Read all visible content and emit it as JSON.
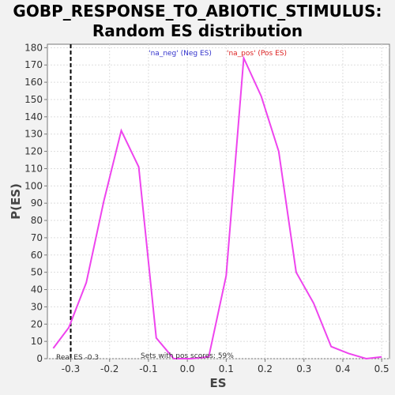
{
  "chart_data": {
    "type": "line",
    "title_line1": "GOBP_RESPONSE_TO_ABIOTIC_STIMULUS:",
    "title_line2": "Random ES distribution",
    "xlabel": "ES",
    "ylabel": "P(ES)",
    "xlim": [
      -0.36,
      0.52
    ],
    "ylim": [
      0,
      182
    ],
    "xticks": [
      -0.3,
      -0.2,
      -0.1,
      0.0,
      0.1,
      0.2,
      0.3,
      0.4,
      0.5
    ],
    "xtick_labels": [
      "-0.3",
      "-0.2",
      "-0.1",
      "0.0",
      "0.1",
      "0.2",
      "0.3",
      "0.4",
      "0.5"
    ],
    "yticks": [
      0,
      10,
      20,
      30,
      40,
      50,
      60,
      70,
      80,
      90,
      100,
      110,
      120,
      130,
      140,
      150,
      160,
      170,
      180
    ],
    "grid": true,
    "series": [
      {
        "color": "#ee44ee",
        "x": [
          -0.345,
          -0.305,
          -0.26,
          -0.215,
          -0.17,
          -0.125,
          -0.08,
          -0.035,
          0.01,
          0.055,
          0.1,
          0.145,
          0.19,
          0.235,
          0.28,
          0.325,
          0.37,
          0.415,
          0.46,
          0.5
        ],
        "y": [
          6,
          18,
          44,
          91,
          132,
          111,
          12,
          0,
          0,
          1,
          48,
          174,
          152,
          120,
          50,
          32,
          7,
          3,
          0,
          1
        ]
      }
    ],
    "real_es": -0.3,
    "legend_neg": "'na_neg' (Neg ES)",
    "legend_pos": "'na_pos' (Pos ES)",
    "legend_neg_color": "#3333cc",
    "legend_pos_color": "#dd2222",
    "real_es_label": "Real ES -0.3",
    "pos_scores_label": "Sets with pos scores: 59%"
  }
}
